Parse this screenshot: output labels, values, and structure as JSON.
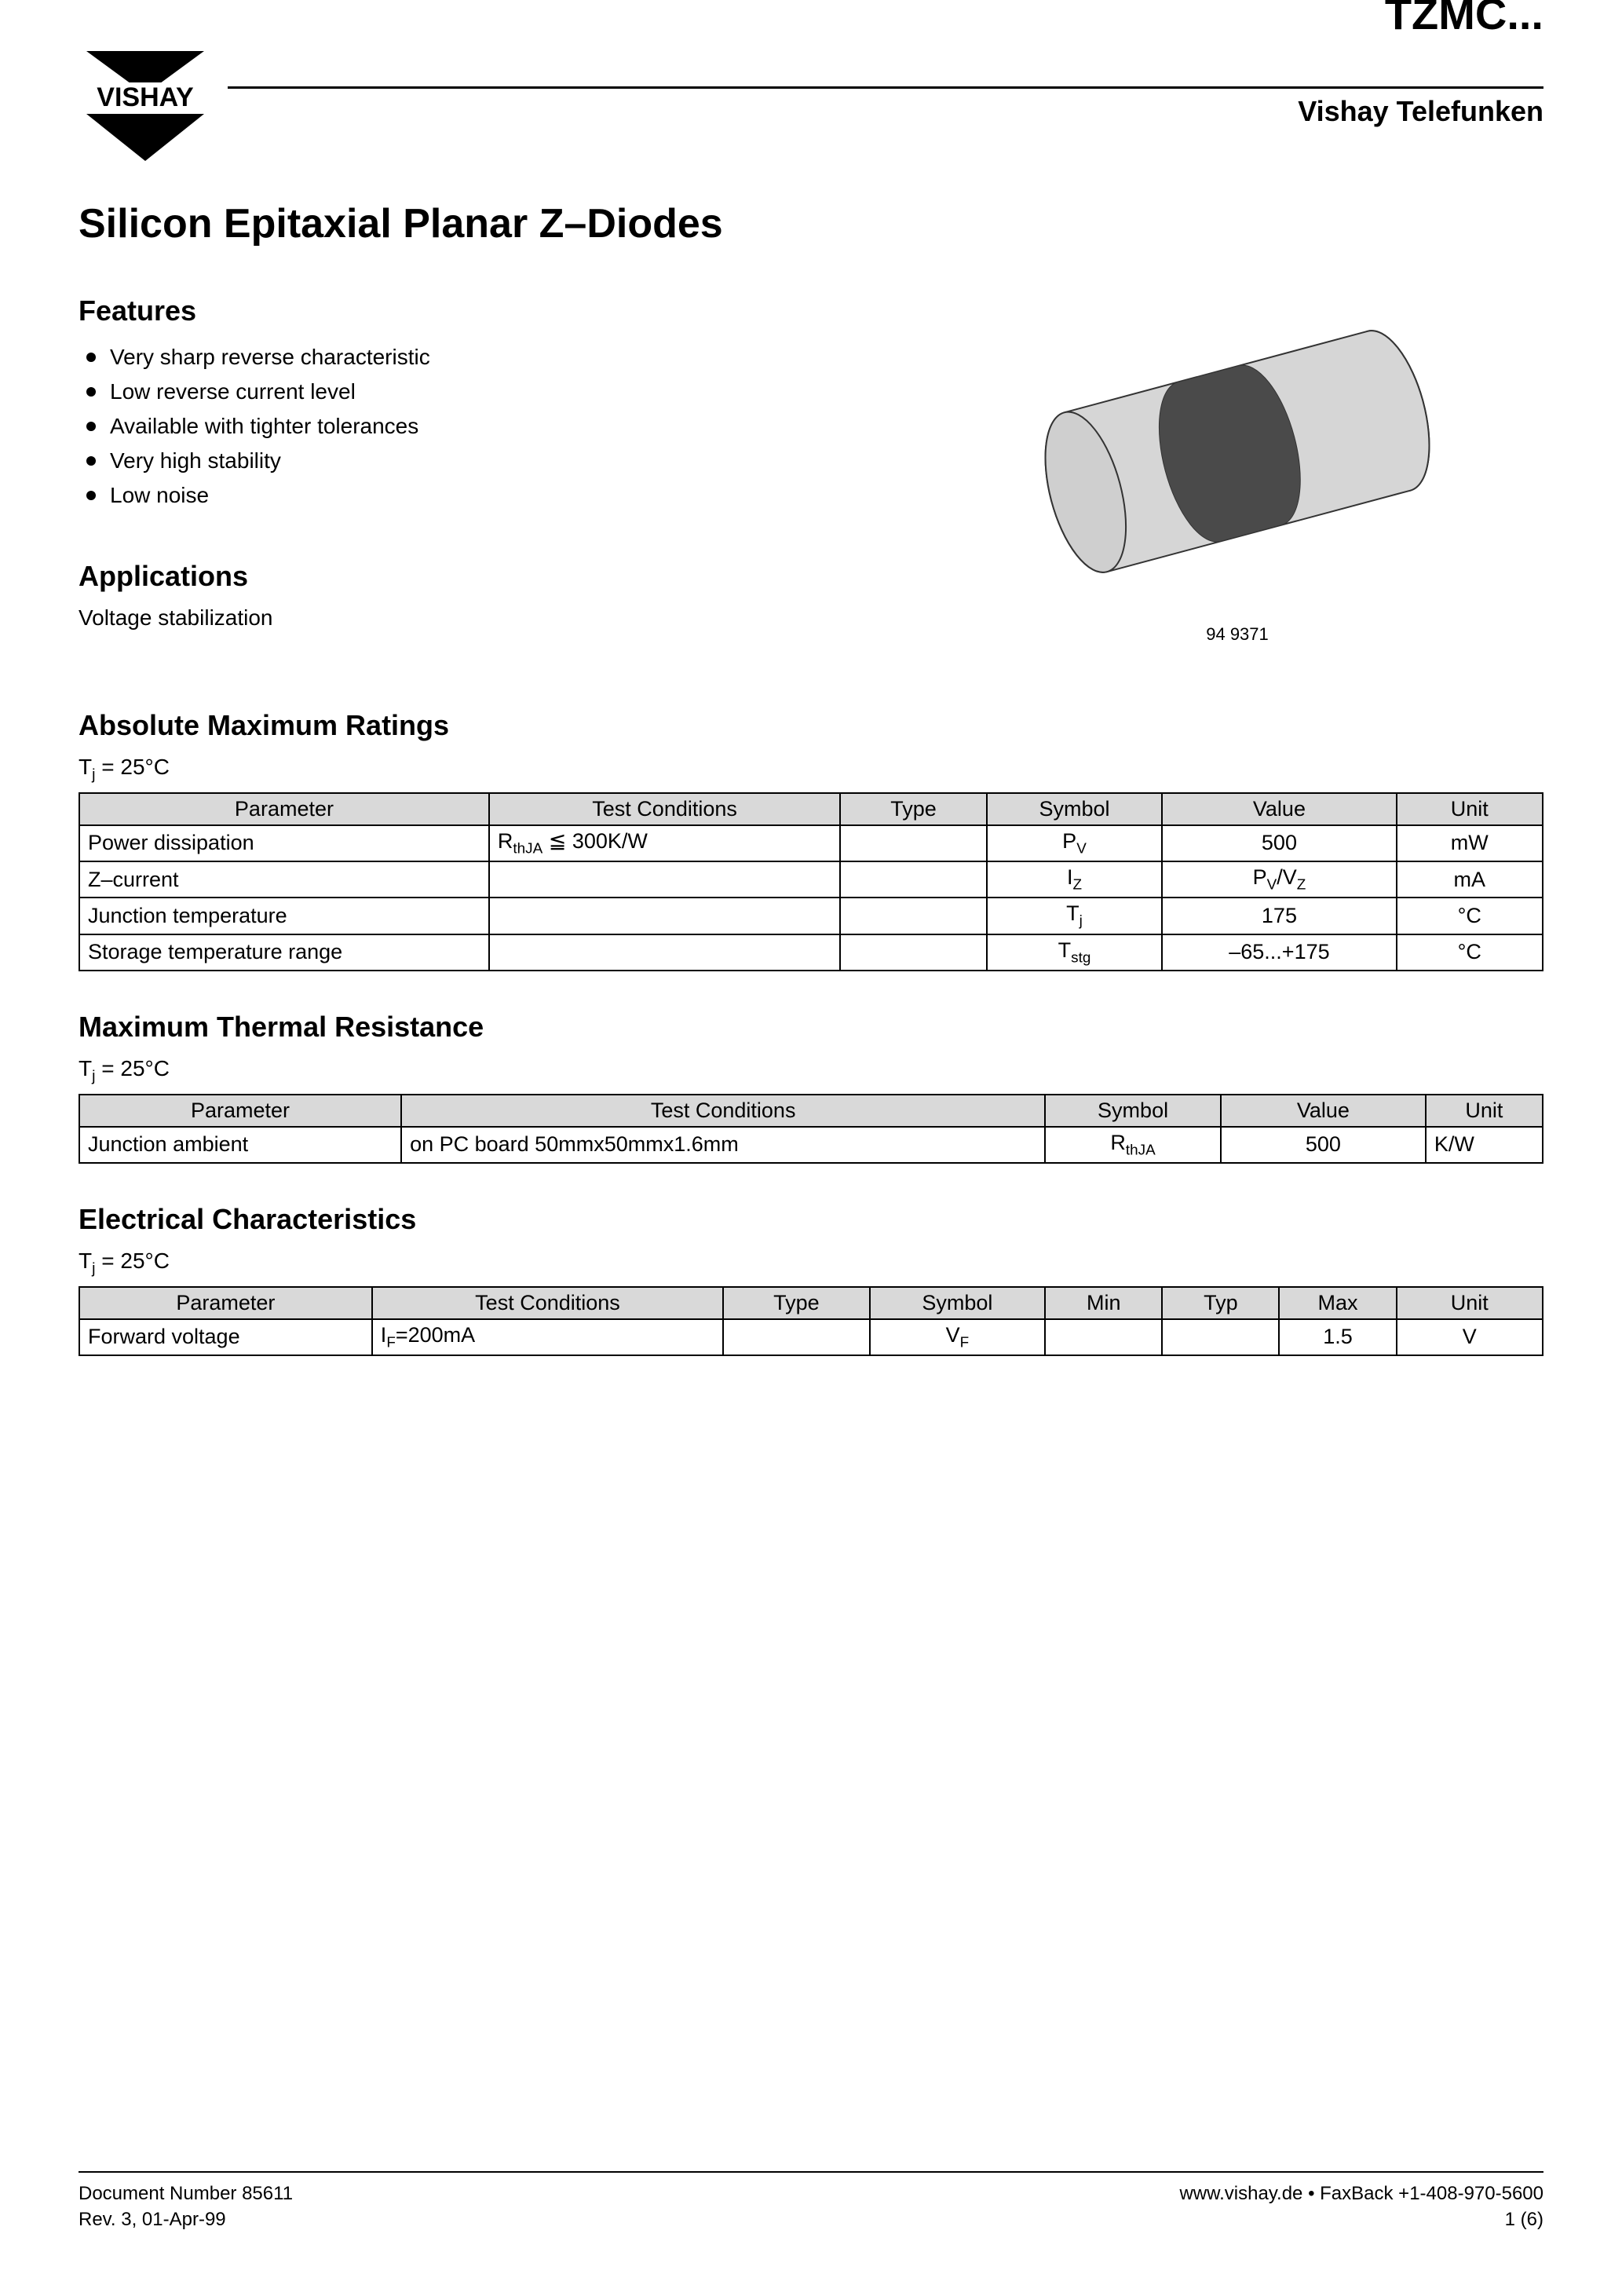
{
  "header": {
    "logo_text": "VISHAY",
    "part_number": "TZMC...",
    "brand": "Vishay Telefunken"
  },
  "title": "Silicon Epitaxial Planar Z–Diodes",
  "features": {
    "heading": "Features",
    "items": [
      "Very sharp reverse characteristic",
      "Low reverse current level",
      "Available with tighter tolerances",
      "Very high stability",
      "Low noise"
    ]
  },
  "applications": {
    "heading": "Applications",
    "text": "Voltage stabilization"
  },
  "image_caption": "94 9371",
  "amr": {
    "heading": "Absolute Maximum Ratings",
    "condition": "Tj = 25°C",
    "columns": [
      "Parameter",
      "Test Conditions",
      "Type",
      "Symbol",
      "Value",
      "Unit"
    ],
    "col_widths": [
      "28%",
      "24%",
      "10%",
      "10%",
      "14%",
      "8%"
    ],
    "rows": [
      {
        "parameter": "Power dissipation",
        "conditions": "R<sub>thJA</sub> ≦ 300K/W",
        "type": "",
        "symbol": "P<sub>V</sub>",
        "value": "500",
        "unit": "mW"
      },
      {
        "parameter": "Z–current",
        "conditions": "",
        "type": "",
        "symbol": "I<sub>Z</sub>",
        "value": "P<sub>V</sub>/V<sub>Z</sub>",
        "unit": "mA"
      },
      {
        "parameter": "Junction temperature",
        "conditions": "",
        "type": "",
        "symbol": "T<sub>j</sub>",
        "value": "175",
        "unit": "°C"
      },
      {
        "parameter": "Storage temperature range",
        "conditions": "",
        "type": "",
        "symbol": "T<sub>stg</sub>",
        "value": "–65...+175",
        "unit": "°C"
      }
    ]
  },
  "mtr": {
    "heading": "Maximum Thermal Resistance",
    "condition": "Tj = 25°C",
    "columns": [
      "Parameter",
      "Test Conditions",
      "Symbol",
      "Value",
      "Unit"
    ],
    "col_widths": [
      "22%",
      "44%",
      "12%",
      "14%",
      "8%"
    ],
    "rows": [
      {
        "parameter": "Junction ambient",
        "conditions": "on PC board 50mmx50mmx1.6mm",
        "symbol": "R<sub>thJA</sub>",
        "value": "500",
        "unit": "K/W"
      }
    ]
  },
  "elec": {
    "heading": "Electrical Characteristics",
    "condition": "Tj = 25°C",
    "columns": [
      "Parameter",
      "Test Conditions",
      "Type",
      "Symbol",
      "Min",
      "Typ",
      "Max",
      "Unit"
    ],
    "col_widths": [
      "20%",
      "24%",
      "10%",
      "12%",
      "8%",
      "8%",
      "8%",
      "8%"
    ],
    "rows": [
      {
        "parameter": "Forward voltage",
        "conditions": "I<sub>F</sub>=200mA",
        "type": "",
        "symbol": "V<sub>F</sub>",
        "min": "",
        "typ": "",
        "max": "1.5",
        "unit": "V"
      }
    ]
  },
  "footer": {
    "doc_number": "Document Number 85611",
    "revision": "Rev. 3, 01-Apr-99",
    "website": "www.vishay.de • FaxBack +1-408-970-5600",
    "page": "1 (6)"
  },
  "diode_svg": {
    "body_fill": "#d6d6d6",
    "band_fill": "#4a4a4a",
    "stroke": "#000000"
  }
}
